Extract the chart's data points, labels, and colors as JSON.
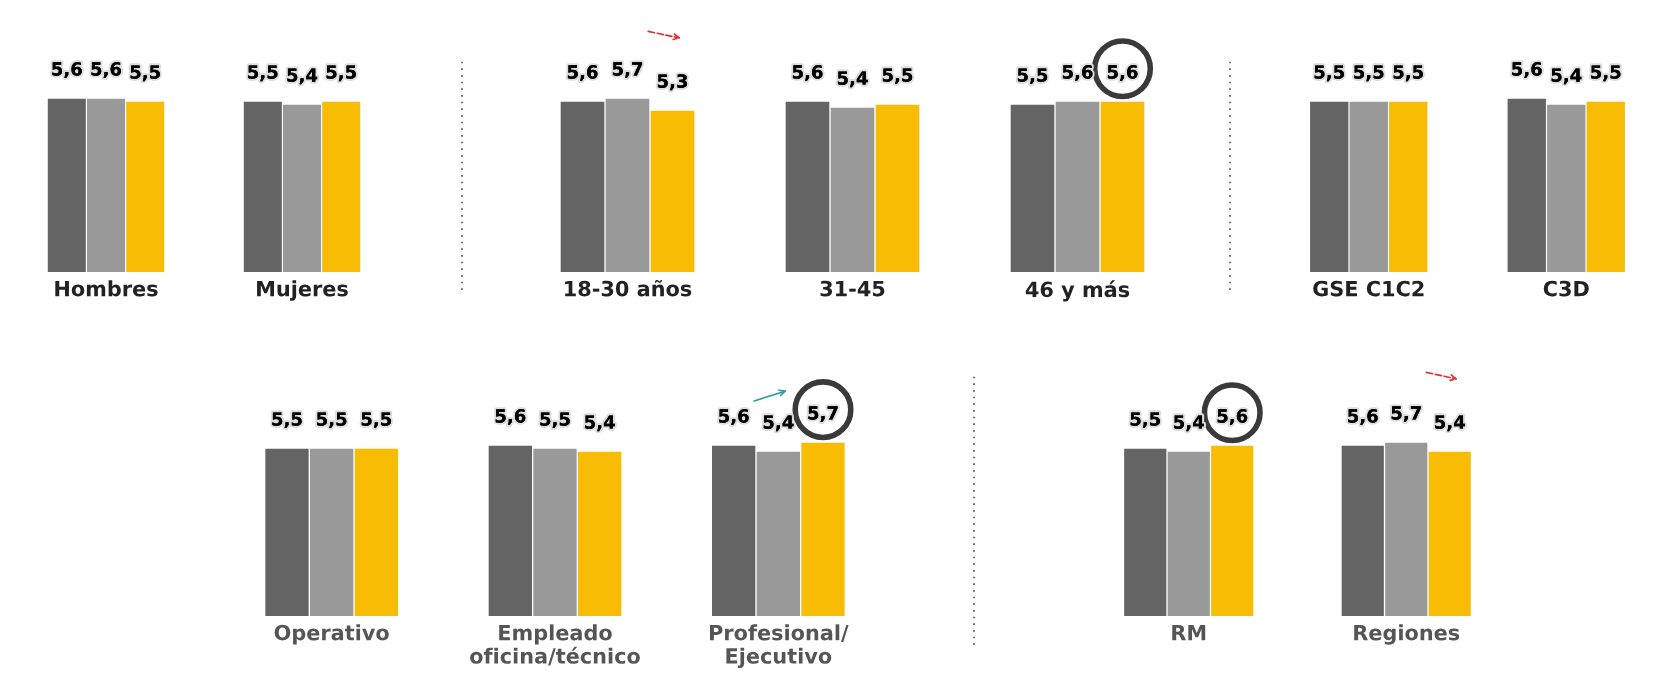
{
  "chart_data": [
    {
      "type": "bar",
      "categories": [
        "Hombres",
        "Mujeres"
      ],
      "tick_labels": "x",
      "grid": false,
      "legend": false,
      "data_labels": true,
      "series": [
        {
          "color": "#646464",
          "values": [
            5.6,
            5.5
          ],
          "value_labels": [
            "5,6",
            "5,5"
          ]
        },
        {
          "color": "#999999",
          "values": [
            5.6,
            5.4
          ],
          "value_labels": [
            "5,6",
            "5,4"
          ]
        },
        {
          "color": "#f9bc05",
          "values": [
            5.5,
            5.5
          ],
          "value_labels": [
            "5,5",
            "5,5"
          ]
        }
      ]
    },
    {
      "type": "bar",
      "categories": [
        "18-30 años",
        "31-45",
        "46 y más"
      ],
      "tick_labels": "x",
      "grid": false,
      "legend": false,
      "data_labels": true,
      "series": [
        {
          "color": "#646464",
          "values": [
            5.6,
            5.6,
            5.5
          ],
          "value_labels": [
            "5,6",
            "5,6",
            "5,5"
          ]
        },
        {
          "color": "#999999",
          "values": [
            5.7,
            5.4,
            5.6
          ],
          "value_labels": [
            "5,7",
            "5,4",
            "5,6"
          ]
        },
        {
          "color": "#f9bc05",
          "values": [
            5.3,
            5.5,
            5.6
          ],
          "value_labels": [
            "5,3",
            "5,5",
            "5,6"
          ]
        }
      ]
    },
    {
      "type": "bar",
      "categories": [
        "GSE C1C2",
        "C3D"
      ],
      "tick_labels": "x",
      "grid": false,
      "legend": false,
      "data_labels": true,
      "series": [
        {
          "color": "#646464",
          "values": [
            5.5,
            5.6
          ],
          "value_labels": [
            "5,5",
            "5,6"
          ]
        },
        {
          "color": "#999999",
          "values": [
            5.5,
            5.4
          ],
          "value_labels": [
            "5,5",
            "5,4"
          ]
        },
        {
          "color": "#f9bc05",
          "values": [
            5.5,
            5.5
          ],
          "value_labels": [
            "5,5",
            "5,5"
          ]
        }
      ]
    },
    {
      "type": "bar",
      "categories": [
        "Operativo",
        "Empleado\noficina/técnico",
        "Profesional/\nEjecutivo"
      ],
      "tick_labels": "x",
      "grid": false,
      "legend": false,
      "data_labels": true,
      "series": [
        {
          "color": "#646464",
          "values": [
            5.5,
            5.6,
            5.6
          ],
          "value_labels": [
            "5,5",
            "5,6",
            "5,6"
          ]
        },
        {
          "color": "#999999",
          "values": [
            5.5,
            5.5,
            5.4
          ],
          "value_labels": [
            "5,5",
            "5,5",
            "5,4"
          ]
        },
        {
          "color": "#f9bc05",
          "values": [
            5.5,
            5.4,
            5.7
          ],
          "value_labels": [
            "5,5",
            "5,4",
            "5,7"
          ]
        }
      ]
    },
    {
      "type": "bar",
      "categories": [
        "RM",
        "Regiones"
      ],
      "tick_labels": "x",
      "grid": false,
      "legend": false,
      "data_labels": true,
      "series": [
        {
          "color": "#646464",
          "values": [
            5.5,
            5.6
          ],
          "value_labels": [
            "5,5",
            "5,6"
          ]
        },
        {
          "color": "#999999",
          "values": [
            5.4,
            5.7
          ],
          "value_labels": [
            "5,4",
            "5,7"
          ]
        },
        {
          "color": "#f9bc05",
          "values": [
            5.6,
            5.4
          ],
          "value_labels": [
            "5,6",
            "5,4"
          ]
        }
      ]
    }
  ]
}
